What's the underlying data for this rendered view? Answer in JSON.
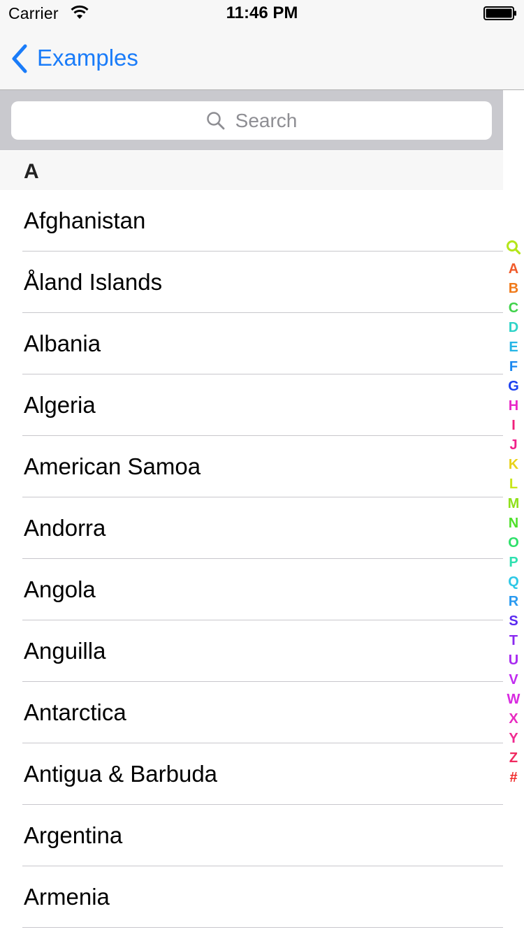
{
  "status_bar": {
    "carrier": "Carrier",
    "time": "11:46 PM"
  },
  "nav": {
    "back_label": "Examples",
    "accent_color": "#1a7cf9"
  },
  "search": {
    "placeholder": "Search"
  },
  "section": {
    "title": "A"
  },
  "countries": [
    "Afghanistan",
    "Åland Islands",
    "Albania",
    "Algeria",
    "American Samoa",
    "Andorra",
    "Angola",
    "Anguilla",
    "Antarctica",
    "Antigua & Barbuda",
    "Argentina",
    "Armenia"
  ],
  "index": {
    "search_icon_color": "#b4e61a",
    "letters": [
      "A",
      "B",
      "C",
      "D",
      "E",
      "F",
      "G",
      "H",
      "I",
      "J",
      "K",
      "L",
      "M",
      "N",
      "O",
      "P",
      "Q",
      "R",
      "S",
      "T",
      "U",
      "V",
      "W",
      "X",
      "Y",
      "Z",
      "#"
    ],
    "colors": [
      "#f05a2a",
      "#f07a1a",
      "#3fd24a",
      "#2ed3c8",
      "#25b5e6",
      "#1a88f0",
      "#1a3ff0",
      "#e829c8",
      "#f0207a",
      "#f0208a",
      "#e8d21a",
      "#c8e61a",
      "#8fe01a",
      "#4fe02a",
      "#2ee06a",
      "#2ee0b0",
      "#2ec8e6",
      "#2a9af0",
      "#5a2af0",
      "#8a2af0",
      "#a82af0",
      "#c02af0",
      "#d82ae0",
      "#e82ac0",
      "#f02a90",
      "#f02a60",
      "#f02a2a"
    ]
  }
}
